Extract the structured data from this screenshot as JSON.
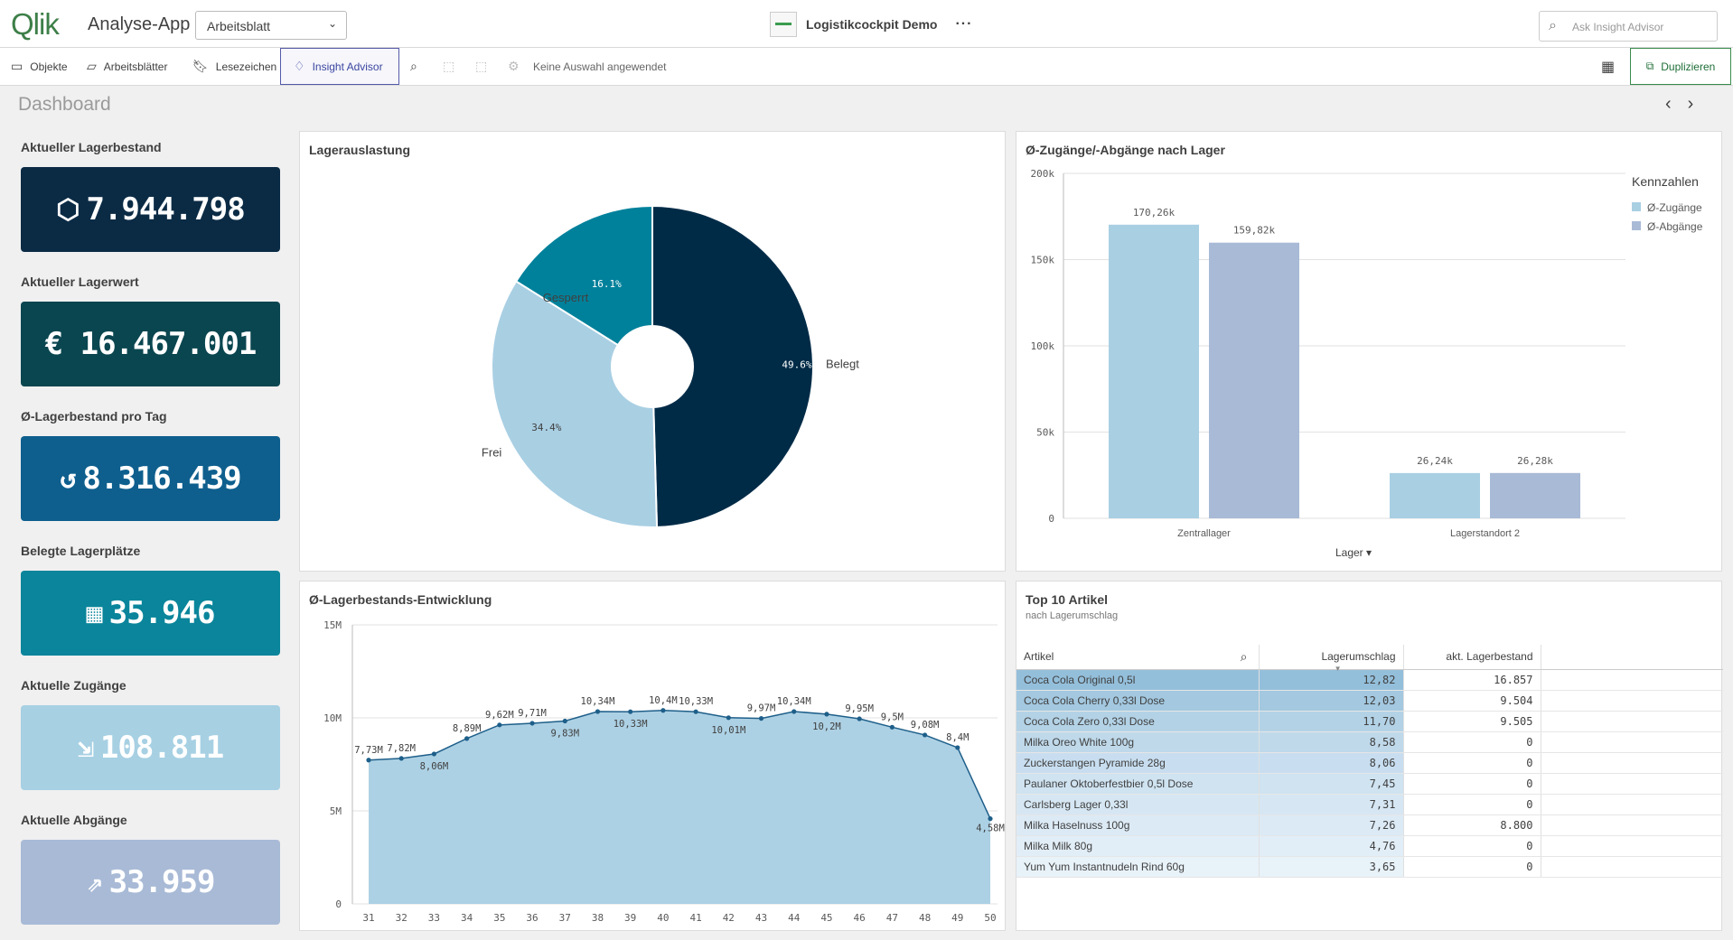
{
  "header": {
    "logo_text": "Qlik",
    "app_name": "Analyse-App",
    "sheet_selector": "Arbeitsblatt",
    "app_title": "Logistikcockpit Demo",
    "more_label": "···",
    "ask_placeholder": "Ask Insight Advisor"
  },
  "toolbar": {
    "objects": "Objekte",
    "sheets": "Arbeitsblätter",
    "bookmarks": "Lesezeichen",
    "insight": "Insight Advisor",
    "no_selection": "Keine Auswahl angewendet",
    "duplicate": "Duplizieren"
  },
  "page": {
    "title": "Dashboard"
  },
  "kpis": [
    {
      "label": "Aktueller Lagerbestand",
      "value": "7.944.798",
      "icon": "box-icon",
      "color": "#0b2b45"
    },
    {
      "label": "Aktueller Lagerwert",
      "value": "€ 16.467.001",
      "icon": "",
      "color": "#0a4650"
    },
    {
      "label": "Ø-Lagerbestand pro Tag",
      "value": "8.316.439",
      "icon": "history-icon",
      "color": "#0e5f8e"
    },
    {
      "label": "Belegte Lagerplätze",
      "value": "35.946",
      "icon": "grid-icon",
      "color": "#0a859b"
    },
    {
      "label": "Aktuelle Zugänge",
      "value": "108.811",
      "icon": "inbox-arrow-icon",
      "color": "#a7d0e3"
    },
    {
      "label": "Aktuelle Abgänge",
      "value": "33.959",
      "icon": "share-arrow-icon",
      "color": "#a8bad6"
    }
  ],
  "panels": {
    "pie_title": "Lagerauslastung",
    "bar_title": "Ø-Zugänge/-Abgänge nach Lager",
    "line_title": "Ø-Lagerbestands-Entwicklung",
    "table_title": "Top 10 Artikel",
    "table_subtitle": "nach Lagerumschlag"
  },
  "chart_data": [
    {
      "type": "pie",
      "title": "Lagerauslastung",
      "slices": [
        {
          "label": "Belegt",
          "value": 49.6,
          "value_label": "49.6%",
          "color": "#002b47"
        },
        {
          "label": "Frei",
          "value": 34.4,
          "value_label": "34.4%",
          "color": "#a9cfe3"
        },
        {
          "label": "Gesperrt",
          "value": 16.1,
          "value_label": "16.1%",
          "color": "#00819b"
        }
      ]
    },
    {
      "type": "bar",
      "title": "Ø-Zugänge/-Abgänge nach Lager",
      "categories": [
        "Zentrallager",
        "Lagerstandort 2"
      ],
      "series": [
        {
          "name": "Ø-Zugänge",
          "values": [
            170260,
            26240
          ],
          "labels": [
            "170,26k",
            "26,24k"
          ],
          "color": "#a9cfe3"
        },
        {
          "name": "Ø-Abgänge",
          "values": [
            159820,
            26280
          ],
          "labels": [
            "159,82k",
            "26,28k"
          ],
          "color": "#a8bad6"
        }
      ],
      "ylim": [
        0,
        200000
      ],
      "yticks": [
        "0",
        "50k",
        "100k",
        "150k",
        "200k"
      ],
      "xlabel": "Lager",
      "legend_title": "Kennzahlen",
      "legend_position": "top-right"
    },
    {
      "type": "area",
      "title": "Ø-Lagerbestands-Entwicklung",
      "x": [
        31,
        32,
        33,
        34,
        35,
        36,
        37,
        38,
        39,
        40,
        41,
        42,
        43,
        44,
        45,
        46,
        47,
        48,
        49,
        50
      ],
      "y": [
        7.73,
        7.82,
        8.06,
        8.89,
        9.62,
        9.71,
        9.83,
        10.34,
        10.33,
        10.4,
        10.33,
        10.01,
        9.97,
        10.34,
        10.2,
        9.95,
        9.5,
        9.08,
        8.4,
        4.58
      ],
      "labels": [
        "7,73M",
        "7,82M",
        "8,06M",
        "8,89M",
        "9,62M",
        "9,71M",
        "9,83M",
        "10,34M",
        "10,33M",
        "10,4M",
        "10,33M",
        "10,01M",
        "9,97M",
        "10,34M",
        "10,2M",
        "9,95M",
        "9,5M",
        "9,08M",
        "8,4M",
        "4,58M"
      ],
      "ylim": [
        0,
        15
      ],
      "yticks": [
        "0",
        "5M",
        "10M",
        "15M"
      ],
      "color": "#a9cfe3"
    }
  ],
  "table": {
    "columns": [
      "Artikel",
      "Lagerumschlag",
      "akt. Lagerbestand"
    ],
    "rows": [
      {
        "name": "Coca Cola Original 0,5l",
        "turnover": "12,82",
        "stock": "16.857"
      },
      {
        "name": "Coca Cola Cherry 0,33l Dose",
        "turnover": "12,03",
        "stock": "9.504"
      },
      {
        "name": "Coca Cola Zero 0,33l Dose",
        "turnover": "11,70",
        "stock": "9.505"
      },
      {
        "name": "Milka Oreo White 100g",
        "turnover": "8,58",
        "stock": "0"
      },
      {
        "name": "Zuckerstangen Pyramide 28g",
        "turnover": "8,06",
        "stock": "0"
      },
      {
        "name": "Paulaner Oktoberfestbier 0,5l Dose",
        "turnover": "7,45",
        "stock": "0"
      },
      {
        "name": "Carlsberg Lager 0,33l",
        "turnover": "7,31",
        "stock": "0"
      },
      {
        "name": "Milka Haselnuss 100g",
        "turnover": "7,26",
        "stock": "8.800"
      },
      {
        "name": "Milka Milk 80g",
        "turnover": "4,76",
        "stock": "0"
      },
      {
        "name": "Yum Yum Instantnudeln Rind 60g",
        "turnover": "3,65",
        "stock": "0"
      }
    ],
    "row_colors": [
      "#94bfdb",
      "#a3c8e0",
      "#b3d2e6",
      "#bfd9ea",
      "#c8def0",
      "#cfe3f1",
      "#d6e7f3",
      "#dceaf5",
      "#e2eef7",
      "#e8f2f9"
    ]
  }
}
